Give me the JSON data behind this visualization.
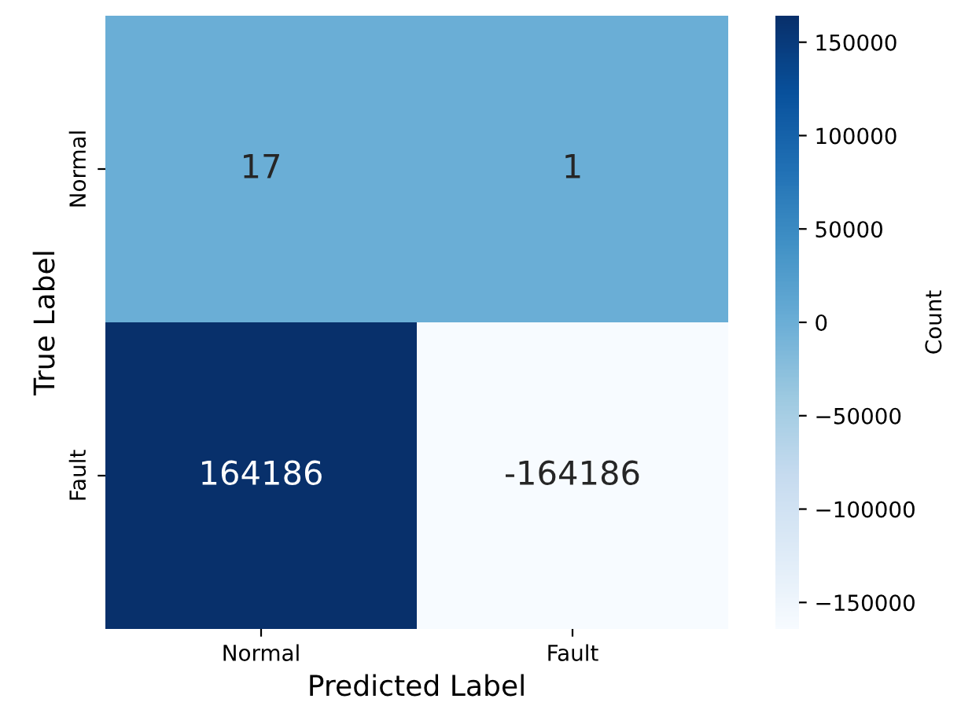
{
  "chart_data": {
    "type": "heatmap",
    "xlabel": "Predicted Label",
    "ylabel": "True Label",
    "clabel": "Count",
    "categories": [
      "Normal",
      "Fault"
    ],
    "y_categories": [
      "Normal",
      "Fault"
    ],
    "cells": [
      [
        17,
        1
      ],
      [
        164186,
        -164186
      ]
    ],
    "data_labels": true,
    "clim": [
      -164186,
      164186
    ],
    "cticks": [
      {
        "value": -150000,
        "label": "−150000"
      },
      {
        "value": -100000,
        "label": "−100000"
      },
      {
        "value": -50000,
        "label": "−50000"
      },
      0,
      50000,
      100000,
      150000
    ]
  }
}
